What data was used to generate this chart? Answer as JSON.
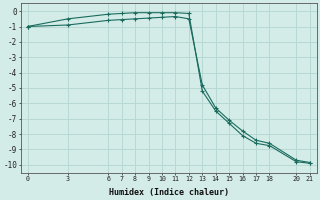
{
  "xlabel": "Humidex (Indice chaleur)",
  "background_color": "#d4ece8",
  "grid_color": "#b8d8d3",
  "line_color": "#1a6b5e",
  "xlim": [
    -0.5,
    21.5
  ],
  "ylim": [
    -10.5,
    0.5
  ],
  "xticks": [
    0,
    3,
    6,
    7,
    8,
    9,
    10,
    11,
    12,
    13,
    14,
    15,
    16,
    17,
    18,
    20,
    21
  ],
  "yticks": [
    0,
    -1,
    -2,
    -3,
    -4,
    -5,
    -6,
    -7,
    -8,
    -9,
    -10
  ],
  "line1_x": [
    0,
    3,
    6,
    7,
    8,
    9,
    10,
    11,
    12,
    13,
    14,
    15,
    16,
    17,
    18,
    20,
    21
  ],
  "line1_y": [
    -1.0,
    -0.5,
    -0.2,
    -0.15,
    -0.1,
    -0.1,
    -0.1,
    -0.1,
    -0.15,
    -5.2,
    -6.5,
    -7.3,
    -8.1,
    -8.6,
    -8.75,
    -9.8,
    -9.9
  ],
  "line2_x": [
    0,
    3,
    6,
    7,
    8,
    9,
    10,
    11,
    12,
    13,
    14,
    15,
    16,
    17,
    18,
    20,
    21
  ],
  "line2_y": [
    -1.0,
    -0.9,
    -0.6,
    -0.55,
    -0.5,
    -0.45,
    -0.4,
    -0.35,
    -0.5,
    -4.8,
    -6.3,
    -7.1,
    -7.8,
    -8.4,
    -8.6,
    -9.7,
    -9.85
  ]
}
